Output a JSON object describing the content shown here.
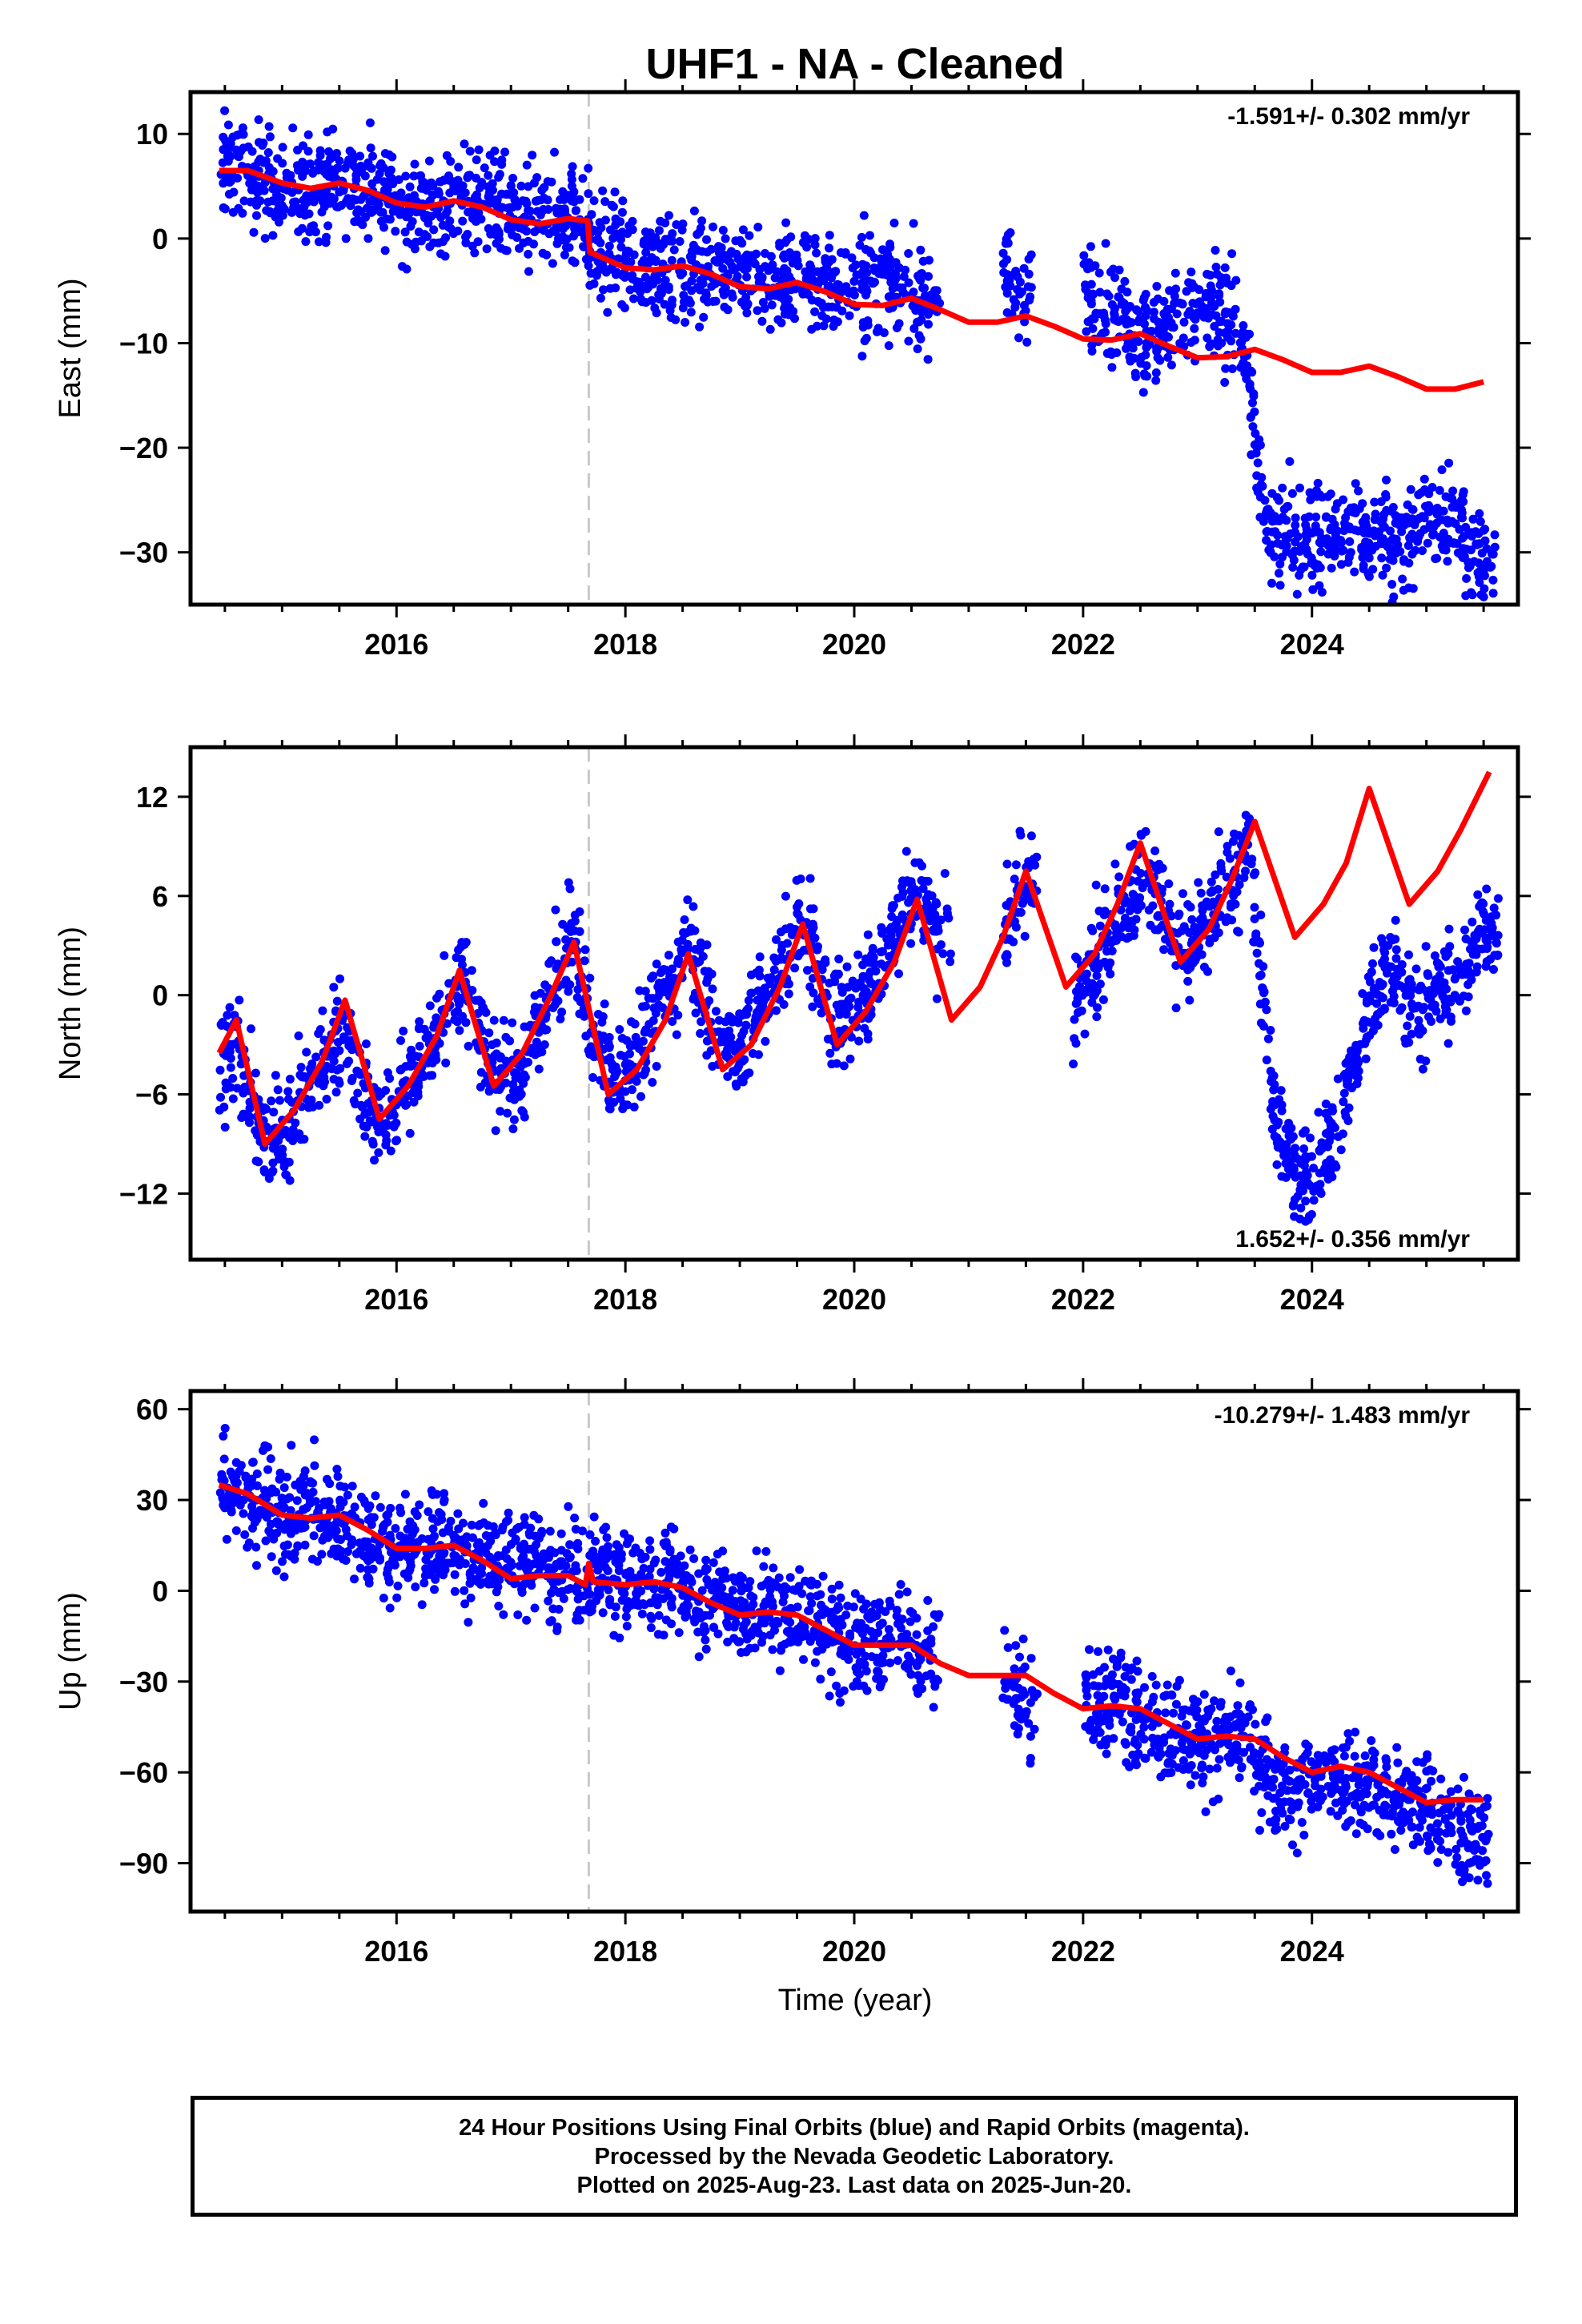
{
  "title": "UHF1  - NA - Cleaned",
  "xlabel": "Time (year)",
  "colors": {
    "data": "#0000ff",
    "model": "#ff0000",
    "frame": "#000000",
    "break_line": "#c8c8c8"
  },
  "footer": {
    "line1": "24 Hour Positions Using Final Orbits (blue) and Rapid Orbits (magenta).",
    "line2": "Processed by the Nevada Geodetic Laboratory.",
    "line3": "Plotted on 2025-Aug-23. Last data on 2025-Jun-20."
  },
  "chart_data": [
    {
      "type": "scatter",
      "ylabel": "East (mm)",
      "rate": "-1.591+/- 0.302 mm/yr",
      "xlim": [
        2014.2,
        2025.8
      ],
      "ylim": [
        -35,
        14
      ],
      "xticks": [
        2016,
        2018,
        2020,
        2022,
        2024
      ],
      "yticks": [
        10,
        0,
        -10,
        -20,
        -30
      ],
      "ytick_labels": [
        "10",
        "0",
        "−10",
        "−20",
        "−30"
      ],
      "equipment_change": 2017.68,
      "series": [
        {
          "role": "daily positions (final orbits)",
          "x": [
            2014.45,
            2014.6,
            2014.8,
            2015.0,
            2015.2,
            2015.4,
            2015.55,
            2015.7,
            2015.9,
            2016.1,
            2016.3,
            2016.5,
            2016.7,
            2016.9,
            2017.1,
            2017.3,
            2017.5,
            2017.67,
            2017.69,
            2017.9,
            2018.2,
            2018.5,
            2018.8,
            2019.1,
            2019.4,
            2019.7,
            2020.0,
            2020.3,
            2020.6,
            2021.3,
            2021.4,
            2022.0,
            2022.3,
            2022.6,
            2022.9,
            2023.2,
            2023.4,
            2023.6,
            2023.9,
            2024.2,
            2024.5,
            2024.8,
            2025.0,
            2025.2,
            2025.45
          ],
          "y": [
            6.8,
            6.5,
            5.8,
            5.0,
            4.8,
            5.2,
            5.5,
            5.0,
            4.0,
            3.2,
            3.0,
            3.8,
            3.5,
            2.5,
            1.8,
            2.2,
            2.2,
            2.2,
            -1.2,
            -1.5,
            -2.5,
            -3.0,
            -2.5,
            -3.5,
            -4.0,
            -3.5,
            -5.0,
            -4.5,
            -5.5,
            -2.5,
            -5.5,
            -4.0,
            -7.5,
            -9.5,
            -7.5,
            -7.0,
            -9.5,
            -28.5,
            -28.0,
            -28.5,
            -28.0,
            -29.0,
            -27.0,
            -27.0,
            -30.0
          ]
        },
        {
          "role": "model",
          "x": [
            2014.45,
            2014.7,
            2015.0,
            2015.25,
            2015.5,
            2015.75,
            2016.0,
            2016.25,
            2016.5,
            2016.75,
            2017.0,
            2017.25,
            2017.5,
            2017.67,
            2017.69,
            2018.0,
            2018.25,
            2018.5,
            2018.75,
            2019.0,
            2019.25,
            2019.5,
            2019.75,
            2020.0,
            2020.25,
            2020.5,
            2020.75,
            2021.0,
            2021.25,
            2021.5,
            2021.75,
            2022.0,
            2022.25,
            2022.5,
            2022.75,
            2023.0,
            2023.25,
            2023.5,
            2023.75,
            2024.0,
            2024.25,
            2024.5,
            2024.75,
            2025.0,
            2025.25,
            2025.5
          ],
          "y": [
            6.5,
            6.5,
            5.3,
            4.8,
            5.3,
            4.6,
            3.4,
            3.0,
            3.6,
            3.0,
            1.8,
            1.4,
            1.9,
            1.7,
            -1.3,
            -2.8,
            -3.0,
            -2.6,
            -3.4,
            -4.6,
            -4.8,
            -4.2,
            -5.1,
            -6.3,
            -6.4,
            -5.7,
            -6.8,
            -8.0,
            -8.0,
            -7.4,
            -8.4,
            -9.6,
            -9.7,
            -9.1,
            -10.3,
            -11.4,
            -11.3,
            -10.6,
            -11.6,
            -12.8,
            -12.8,
            -12.2,
            -13.2,
            -14.4,
            -14.4,
            -13.7
          ]
        }
      ]
    },
    {
      "type": "scatter",
      "ylabel": "North (mm)",
      "rate": "1.652+/- 0.356 mm/yr",
      "xlim": [
        2014.2,
        2025.8
      ],
      "ylim": [
        -16,
        15
      ],
      "xticks": [
        2016,
        2018,
        2020,
        2022,
        2024
      ],
      "yticks": [
        12,
        6,
        0,
        -6,
        -12
      ],
      "ytick_labels": [
        "12",
        "6",
        "0",
        "−6",
        "−12"
      ],
      "equipment_change": 2017.68,
      "series": [
        {
          "role": "daily positions (final orbits)",
          "x": [
            2014.45,
            2014.6,
            2014.8,
            2015.0,
            2015.2,
            2015.4,
            2015.55,
            2015.7,
            2015.9,
            2016.1,
            2016.3,
            2016.55,
            2016.75,
            2016.9,
            2017.1,
            2017.3,
            2017.55,
            2017.7,
            2017.9,
            2018.1,
            2018.3,
            2018.55,
            2018.8,
            2019.0,
            2019.3,
            2019.55,
            2019.8,
            2020.0,
            2020.3,
            2020.55,
            2020.7,
            2021.3,
            2021.45,
            2021.9,
            2022.1,
            2022.35,
            2022.55,
            2022.8,
            2023.0,
            2023.25,
            2023.45,
            2023.7,
            2023.9,
            2024.1,
            2024.3,
            2024.5,
            2024.7,
            2024.9,
            2025.1,
            2025.3,
            2025.5
          ],
          "y": [
            -4.5,
            -3.0,
            -8.0,
            -9.0,
            -6.0,
            -3.5,
            -1.5,
            -6.0,
            -8.0,
            -5.0,
            -3.5,
            1.0,
            -2.5,
            -5.5,
            -4.5,
            -1.0,
            3.5,
            -2.0,
            -5.0,
            -3.0,
            -1.0,
            3.5,
            -2.5,
            -3.0,
            0.5,
            5.0,
            -1.5,
            -1.0,
            3.0,
            7.0,
            4.0,
            3.5,
            6.5,
            -1.0,
            2.0,
            5.5,
            8.0,
            3.0,
            3.0,
            6.0,
            9.0,
            -9.0,
            -11.0,
            -10.0,
            -6.0,
            -1.0,
            2.0,
            -1.0,
            0.0,
            1.0,
            4.0
          ]
        },
        {
          "role": "model",
          "x": [
            2014.45,
            2014.6,
            2014.85,
            2015.1,
            2015.35,
            2015.55,
            2015.85,
            2016.1,
            2016.35,
            2016.55,
            2016.85,
            2017.1,
            2017.35,
            2017.55,
            2017.85,
            2018.1,
            2018.35,
            2018.55,
            2018.85,
            2019.1,
            2019.35,
            2019.55,
            2019.85,
            2020.1,
            2020.35,
            2020.55,
            2020.85,
            2021.1,
            2021.3,
            2021.5,
            2021.85,
            2022.1,
            2022.3,
            2022.5,
            2022.85,
            2023.1,
            2023.3,
            2023.5,
            2023.85,
            2024.1,
            2024.3,
            2024.5,
            2024.85,
            2025.1,
            2025.3,
            2025.55
          ],
          "y": [
            -3.5,
            -1.5,
            -9.0,
            -7.0,
            -4.0,
            -0.3,
            -7.5,
            -5.5,
            -2.5,
            1.5,
            -5.5,
            -3.5,
            0.0,
            3.2,
            -6.0,
            -4.5,
            -1.5,
            2.5,
            -4.5,
            -3.0,
            0.5,
            4.3,
            -3.0,
            -1.0,
            2.0,
            5.8,
            -1.5,
            0.5,
            3.5,
            7.5,
            0.5,
            2.5,
            5.5,
            9.2,
            2.0,
            4.0,
            7.0,
            10.5,
            3.5,
            5.5,
            8.0,
            12.5,
            5.5,
            7.5,
            10.0,
            13.5
          ]
        }
      ]
    },
    {
      "type": "scatter",
      "ylabel": "Up (mm)",
      "rate": "-10.279+/- 1.483 mm/yr",
      "xlim": [
        2014.2,
        2025.8
      ],
      "ylim": [
        -106,
        66
      ],
      "xticks": [
        2016,
        2018,
        2020,
        2022,
        2024
      ],
      "yticks": [
        60,
        30,
        0,
        -30,
        -60,
        -90
      ],
      "ytick_labels": [
        "60",
        "30",
        "0",
        "−30",
        "−60",
        "−90"
      ],
      "equipment_change": 2017.68,
      "series": [
        {
          "role": "daily positions (final orbits)",
          "x": [
            2014.45,
            2014.6,
            2014.8,
            2015.0,
            2015.2,
            2015.4,
            2015.6,
            2015.8,
            2016.0,
            2016.2,
            2016.4,
            2016.6,
            2016.8,
            2017.0,
            2017.2,
            2017.4,
            2017.6,
            2017.8,
            2018.0,
            2018.2,
            2018.4,
            2018.6,
            2018.8,
            2019.0,
            2019.2,
            2019.4,
            2019.6,
            2019.8,
            2020.0,
            2020.2,
            2020.4,
            2020.6,
            2021.3,
            2021.45,
            2022.0,
            2022.2,
            2022.4,
            2022.6,
            2022.8,
            2023.0,
            2023.2,
            2023.4,
            2023.6,
            2023.8,
            2024.0,
            2024.2,
            2024.4,
            2024.6,
            2024.8,
            2025.0,
            2025.2,
            2025.4
          ],
          "y": [
            38.0,
            34.0,
            28.0,
            25.0,
            27.0,
            24.0,
            22.0,
            17.0,
            14.0,
            15.0,
            17.0,
            12.0,
            10.0,
            8.0,
            10.0,
            6.0,
            4.0,
            6.0,
            2.0,
            4.0,
            3.0,
            0.0,
            -2.0,
            -8.0,
            -6.0,
            -7.0,
            -9.0,
            -15.0,
            -17.0,
            -18.0,
            -14.0,
            -20.0,
            -25.0,
            -35.0,
            -40.0,
            -36.0,
            -38.0,
            -44.0,
            -46.0,
            -48.0,
            -50.0,
            -49.0,
            -60.0,
            -70.0,
            -65.0,
            -60.0,
            -62.0,
            -66.0,
            -70.0,
            -72.0,
            -75.0,
            -82.0
          ]
        },
        {
          "role": "model",
          "x": [
            2014.45,
            2014.7,
            2015.0,
            2015.25,
            2015.5,
            2015.75,
            2016.0,
            2016.25,
            2016.5,
            2016.75,
            2017.0,
            2017.25,
            2017.5,
            2017.65,
            2017.68,
            2017.72,
            2018.0,
            2018.25,
            2018.5,
            2018.75,
            2019.0,
            2019.25,
            2019.5,
            2019.75,
            2020.0,
            2020.25,
            2020.5,
            2020.75,
            2021.0,
            2021.25,
            2021.5,
            2021.75,
            2022.0,
            2022.25,
            2022.5,
            2022.75,
            2023.0,
            2023.25,
            2023.5,
            2023.75,
            2024.0,
            2024.25,
            2024.5,
            2024.75,
            2025.0,
            2025.25,
            2025.5
          ],
          "y": [
            35.0,
            32.0,
            25.0,
            24.0,
            25.0,
            20.0,
            14.0,
            14.0,
            15.0,
            10.0,
            4.0,
            5.0,
            5.0,
            2.0,
            9.0,
            3.0,
            2.0,
            3.0,
            1.0,
            -4.0,
            -8.0,
            -7.0,
            -8.0,
            -13.0,
            -18.0,
            -18.0,
            -18.0,
            -24.0,
            -28.0,
            -28.0,
            -28.0,
            -34.0,
            -39.0,
            -38.0,
            -39.0,
            -44.0,
            -49.0,
            -48.0,
            -49.0,
            -55.0,
            -60.0,
            -58.0,
            -60.0,
            -65.0,
            -70.0,
            -69.0,
            -69.0
          ]
        }
      ]
    }
  ]
}
